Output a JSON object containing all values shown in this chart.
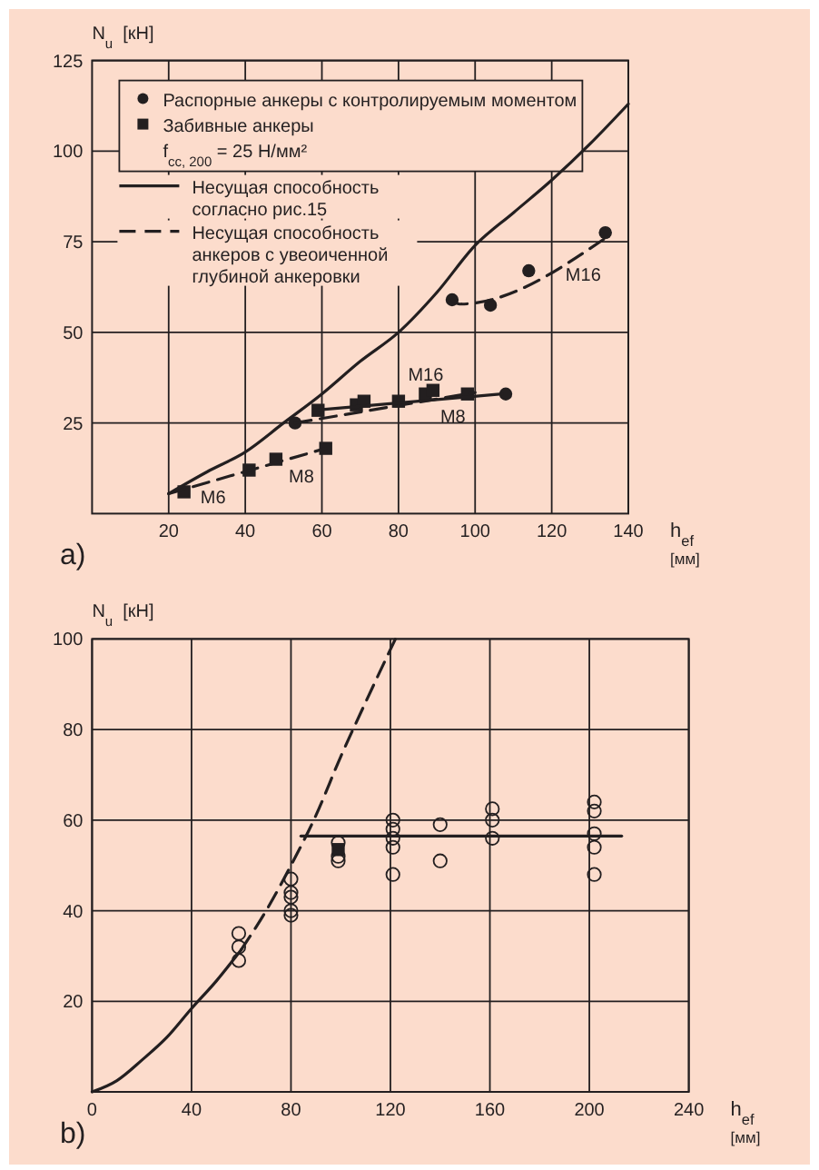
{
  "chart_data": [
    {
      "type": "scatter",
      "xlabel": "h$_{ef}$ [мм]",
      "ylabel": "N$_{u}$  [кН]",
      "xlim": [
        0,
        140
      ],
      "xticks": [
        20,
        40,
        60,
        80,
        100,
        120,
        140
      ],
      "ylim": [
        0,
        125
      ],
      "yticks": [
        25,
        50,
        75,
        100,
        125
      ],
      "grid": true,
      "legend": "top left",
      "annotations": [
        "a)",
        "f$_{cc, 200}$ = 25 Н/мм²",
        {
          "text": "M6",
          "x": 24,
          "y": 6
        },
        {
          "text": "M8",
          "x": 48,
          "y": 15
        },
        {
          "text": "M16",
          "x": 89,
          "y": 34
        },
        {
          "text": "M8",
          "x": 98,
          "y": 33
        },
        {
          "text": "M16",
          "x": 114,
          "y": 67
        }
      ],
      "series": [
        {
          "name": "Распорные анкеры с контролируемым моментом",
          "marker": "circle",
          "color": "#231f20",
          "x": [
            53,
            94,
            104,
            114,
            134,
            108
          ],
          "values": [
            25,
            59,
            57.5,
            67,
            77.5,
            33
          ]
        },
        {
          "name": "Забивные анкеры",
          "marker": "square",
          "color": "#231f20",
          "x": [
            24,
            41,
            48,
            61,
            59,
            69,
            71,
            80,
            87,
            89,
            98
          ],
          "values": [
            6,
            12,
            15,
            18,
            28.5,
            30,
            31,
            31,
            33,
            34,
            33
          ]
        },
        {
          "name": "Несущая способность согласно рис.15",
          "type": "line",
          "line_style": "solid",
          "color": "#231f20",
          "x": [
            20,
            30,
            40,
            50,
            60,
            70,
            80,
            90,
            100,
            110,
            120,
            130,
            140
          ],
          "values": [
            5.5,
            11.5,
            17,
            25,
            33,
            42,
            50,
            61,
            74,
            83,
            92,
            102,
            113
          ]
        },
        {
          "name": "Несущая способность анкеров с увеоиченной глубиной анкеровки",
          "type": "line",
          "line_style": "dashed",
          "color": "#231f20",
          "x": [
            20,
            61
          ],
          "values": [
            5.5,
            18
          ]
        },
        {
          "type": "line",
          "line_style": "dashed",
          "color": "#231f20",
          "x": [
            53,
            100
          ],
          "values": [
            25,
            33.4
          ]
        },
        {
          "type": "line",
          "line_style": "dashed",
          "color": "#231f20",
          "x": [
            94,
            96,
            134
          ],
          "values": [
            59,
            57.8,
            76
          ]
        },
        {
          "type": "line",
          "line_style": "solid",
          "color": "#231f20",
          "x": [
            58,
            107
          ],
          "values": [
            28.5,
            33
          ]
        }
      ]
    },
    {
      "type": "scatter",
      "xlabel": "h$_{ef}$ [мм]",
      "ylabel": "N$_{u}$  [кН]",
      "xlim": [
        0,
        240
      ],
      "xticks": [
        0,
        40,
        80,
        120,
        160,
        200,
        240
      ],
      "ylim": [
        0,
        100
      ],
      "yticks": [
        20,
        40,
        60,
        80,
        100
      ],
      "grid": true,
      "annotations": [
        "b)"
      ],
      "series": [
        {
          "type": "line",
          "line_style": "solid",
          "color": "#231f20",
          "x": [
            0,
            10,
            20,
            30,
            40,
            50,
            60
          ],
          "values": [
            0,
            2.5,
            7,
            12,
            18.4,
            24.5,
            31.4
          ]
        },
        {
          "type": "line",
          "line_style": "dashed",
          "color": "#231f20",
          "x": [
            60,
            70,
            80,
            90,
            100,
            110,
            122
          ],
          "values": [
            31.4,
            40,
            50,
            61,
            74,
            86,
            100
          ]
        },
        {
          "type": "line",
          "line_style": "solid",
          "color": "#231f20",
          "x": [
            84,
            213
          ],
          "values": [
            56.5,
            56.5
          ]
        },
        {
          "marker": "square",
          "color": "#231f20",
          "x": [
            99
          ],
          "values": [
            53.5
          ]
        },
        {
          "marker": "circle-open",
          "color": "#231f20",
          "x": [
            59,
            59,
            59,
            80,
            80,
            80,
            80,
            80,
            99,
            99,
            99,
            121,
            121,
            121,
            121,
            121,
            140,
            140,
            161,
            161,
            161,
            202,
            202,
            202,
            202,
            202
          ],
          "values": [
            35,
            32,
            29,
            47,
            44,
            43,
            40,
            39,
            55,
            52,
            51,
            60,
            58,
            56,
            54,
            48,
            59,
            51,
            62.5,
            60,
            56,
            64,
            62,
            57,
            54,
            48
          ]
        }
      ]
    }
  ]
}
